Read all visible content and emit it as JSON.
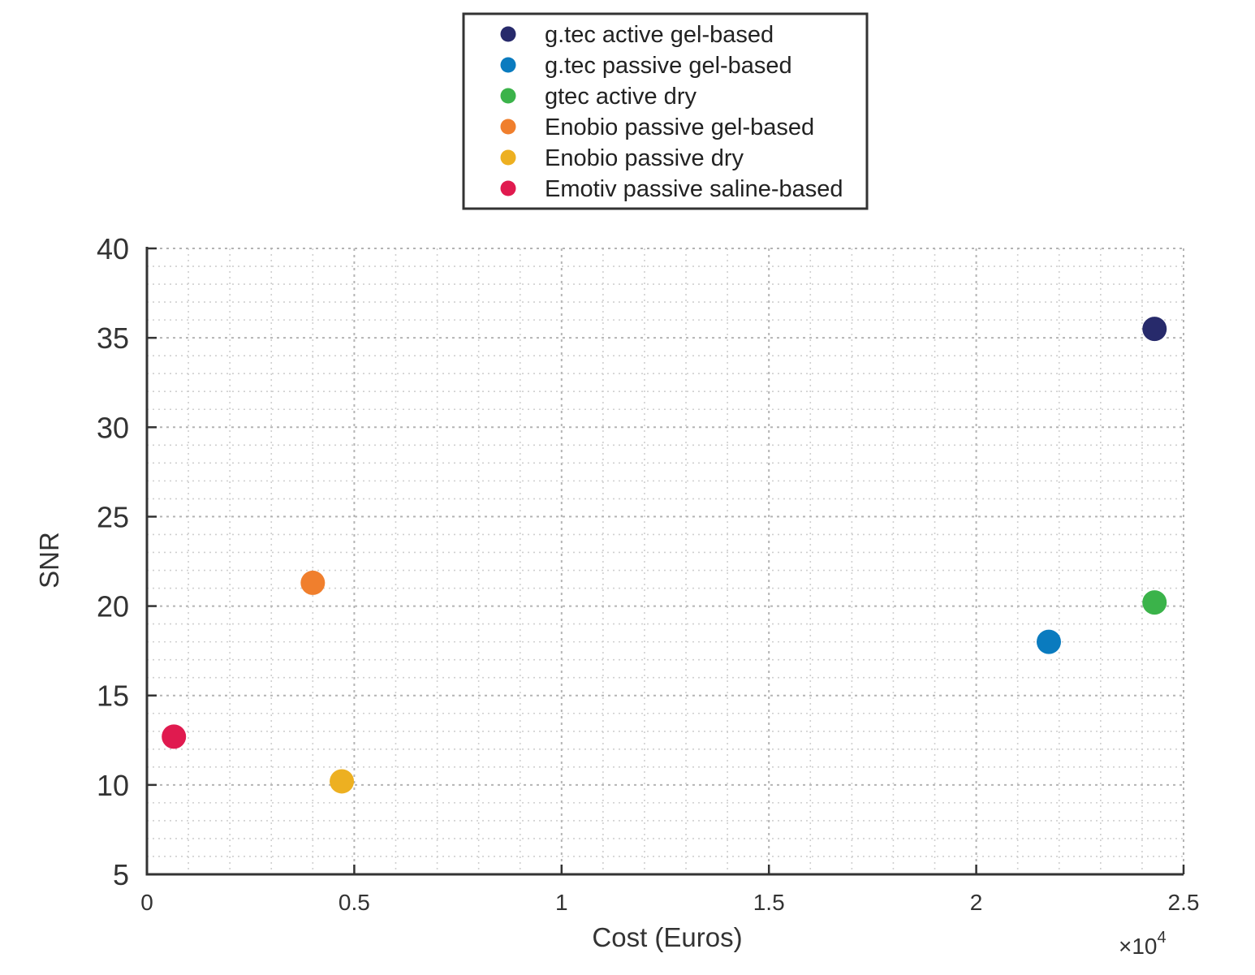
{
  "chart_data": {
    "type": "scatter",
    "title": "",
    "xlabel": "Cost (Euros)",
    "ylabel": "SNR",
    "x_exponent_label": "×10",
    "x_exponent_power": "4",
    "x_scale_factor": 10000,
    "xlim": [
      0,
      25000
    ],
    "ylim": [
      5,
      40
    ],
    "x_ticks": [
      0,
      5000,
      10000,
      15000,
      20000,
      25000
    ],
    "x_tick_labels": [
      "0",
      "0.5",
      "1",
      "1.5",
      "2",
      "2.5"
    ],
    "y_ticks": [
      5,
      10,
      15,
      20,
      25,
      30,
      35,
      40
    ],
    "y_tick_labels": [
      "5",
      "10",
      "15",
      "20",
      "25",
      "30",
      "35",
      "40"
    ],
    "grid": "on (major and minor, dotted)",
    "legend_position": "top-center, outside above plot",
    "series": [
      {
        "name": "g.tec active gel-based",
        "color": "#272a6b",
        "x": 24300,
        "y": 35.5
      },
      {
        "name": "g.tec passive gel-based",
        "color": "#0a7bbf",
        "x": 21750,
        "y": 18.0
      },
      {
        "name": "gtec active dry",
        "color": "#3bb34a",
        "x": 24300,
        "y": 20.2
      },
      {
        "name": "Enobio passive gel-based",
        "color": "#f07f2d",
        "x": 4000,
        "y": 21.3
      },
      {
        "name": "Enobio passive dry",
        "color": "#edb021",
        "x": 4700,
        "y": 10.2
      },
      {
        "name": "Emotiv passive saline-based",
        "color": "#e01a4f",
        "x": 650,
        "y": 12.7
      }
    ]
  }
}
